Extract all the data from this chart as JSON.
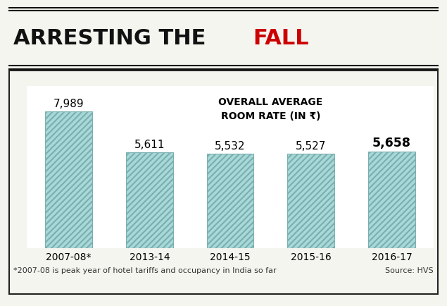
{
  "title_black": "ARRESTING THE ",
  "title_red": "FALL",
  "subtitle": "OVERALL AVERAGE\nROOM RATE (IN ₹)",
  "categories": [
    "2007-08*",
    "2013-14",
    "2014-15",
    "2015-16",
    "2016-17"
  ],
  "values": [
    7989,
    5611,
    5532,
    5527,
    5658
  ],
  "labels": [
    "7,989",
    "5,611",
    "5,532",
    "5,527",
    "5,658"
  ],
  "bar_face_color": "#a8d8d8",
  "bar_edge_color": "#7aafaf",
  "hatch": "////",
  "background_color": "#f5f5f0",
  "plot_bg_color": "#ffffff",
  "border_color": "#222222",
  "footnote": "*2007-08 is peak year of hotel tariffs and occupancy in India so far",
  "source": "Source: HVS",
  "ylim": [
    0,
    9500
  ],
  "title_fontsize": 22,
  "label_fontsize": 11,
  "category_fontsize": 10,
  "footnote_fontsize": 8,
  "subtitle_fontsize": 10
}
